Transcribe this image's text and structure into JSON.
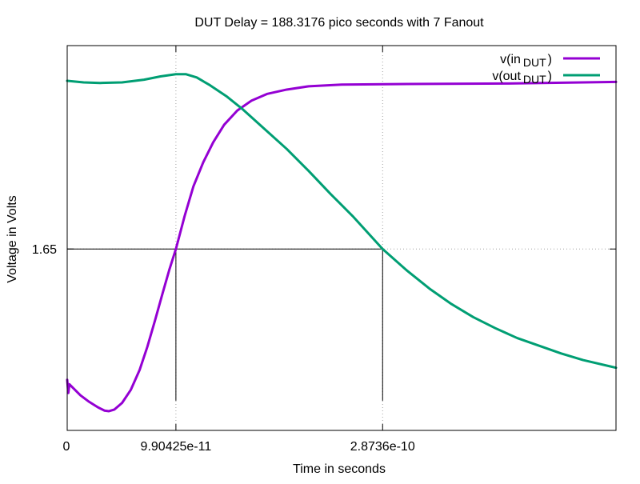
{
  "chart_data": {
    "type": "line",
    "title": "DUT Delay = 188.3176 pico seconds with 7 Fanout",
    "xlabel": "Time in seconds",
    "ylabel": "Voltage in Volts",
    "xlim": [
      0,
      5e-10
    ],
    "ylim": [
      0,
      3.5
    ],
    "x_ticks": [
      {
        "value": 0,
        "label": "0"
      },
      {
        "value": 9.90425e-11,
        "label": "9.90425e-11"
      },
      {
        "value": 2.8736e-10,
        "label": "2.8736e-10"
      }
    ],
    "y_ticks": [
      {
        "value": 1.65,
        "label": "1.65"
      }
    ],
    "grid": true,
    "legend_position": "top-right",
    "legend": [
      {
        "prefix": "v(in",
        "subscript": "DUT",
        "suffix": ")"
      },
      {
        "prefix": "v(out",
        "subscript": "DUT",
        "suffix": ")"
      }
    ],
    "series": [
      {
        "name": "v(in_DUT)",
        "color": "#9400d3",
        "points": [
          [
            0,
            0.46
          ],
          [
            1e-12,
            0.34
          ],
          [
            2e-12,
            0.42
          ],
          [
            6e-12,
            0.38
          ],
          [
            1.2e-11,
            0.32
          ],
          [
            2e-11,
            0.26
          ],
          [
            2.8e-11,
            0.21
          ],
          [
            3.4e-11,
            0.18
          ],
          [
            3.8e-11,
            0.175
          ],
          [
            4.3e-11,
            0.19
          ],
          [
            5e-11,
            0.25
          ],
          [
            5.8e-11,
            0.37
          ],
          [
            6.6e-11,
            0.55
          ],
          [
            7.3e-11,
            0.76
          ],
          [
            8e-11,
            1.0
          ],
          [
            8.7e-11,
            1.25
          ],
          [
            9.3e-11,
            1.46
          ],
          [
            9.90425e-11,
            1.65
          ],
          [
            1.07e-10,
            1.95
          ],
          [
            1.15e-10,
            2.22
          ],
          [
            1.24e-10,
            2.44
          ],
          [
            1.33e-10,
            2.62
          ],
          [
            1.43e-10,
            2.78
          ],
          [
            1.55e-10,
            2.91
          ],
          [
            1.68e-10,
            3.0
          ],
          [
            1.82e-10,
            3.06
          ],
          [
            2e-10,
            3.1
          ],
          [
            2.2e-10,
            3.13
          ],
          [
            2.5e-10,
            3.145
          ],
          [
            3e-10,
            3.15
          ],
          [
            4e-10,
            3.155
          ],
          [
            5e-10,
            3.17
          ]
        ]
      },
      {
        "name": "v(out_DUT)",
        "color": "#009e73",
        "points": [
          [
            0,
            3.18
          ],
          [
            1.5e-11,
            3.165
          ],
          [
            3e-11,
            3.16
          ],
          [
            5e-11,
            3.165
          ],
          [
            7e-11,
            3.19
          ],
          [
            8.5e-11,
            3.22
          ],
          [
            9.9e-11,
            3.24
          ],
          [
            1.08e-10,
            3.24
          ],
          [
            1.18e-10,
            3.21
          ],
          [
            1.3e-10,
            3.14
          ],
          [
            1.45e-10,
            3.04
          ],
          [
            1.6e-10,
            2.92
          ],
          [
            1.8e-10,
            2.74
          ],
          [
            2e-10,
            2.56
          ],
          [
            2.2e-10,
            2.36
          ],
          [
            2.4e-10,
            2.15
          ],
          [
            2.6e-10,
            1.95
          ],
          [
            2.8736e-10,
            1.65
          ],
          [
            3.1e-10,
            1.45
          ],
          [
            3.3e-10,
            1.29
          ],
          [
            3.5e-10,
            1.15
          ],
          [
            3.7e-10,
            1.03
          ],
          [
            3.9e-10,
            0.93
          ],
          [
            4.1e-10,
            0.84
          ],
          [
            4.3e-10,
            0.77
          ],
          [
            4.5e-10,
            0.7
          ],
          [
            4.7e-10,
            0.64
          ],
          [
            5e-10,
            0.57
          ]
        ]
      }
    ]
  }
}
